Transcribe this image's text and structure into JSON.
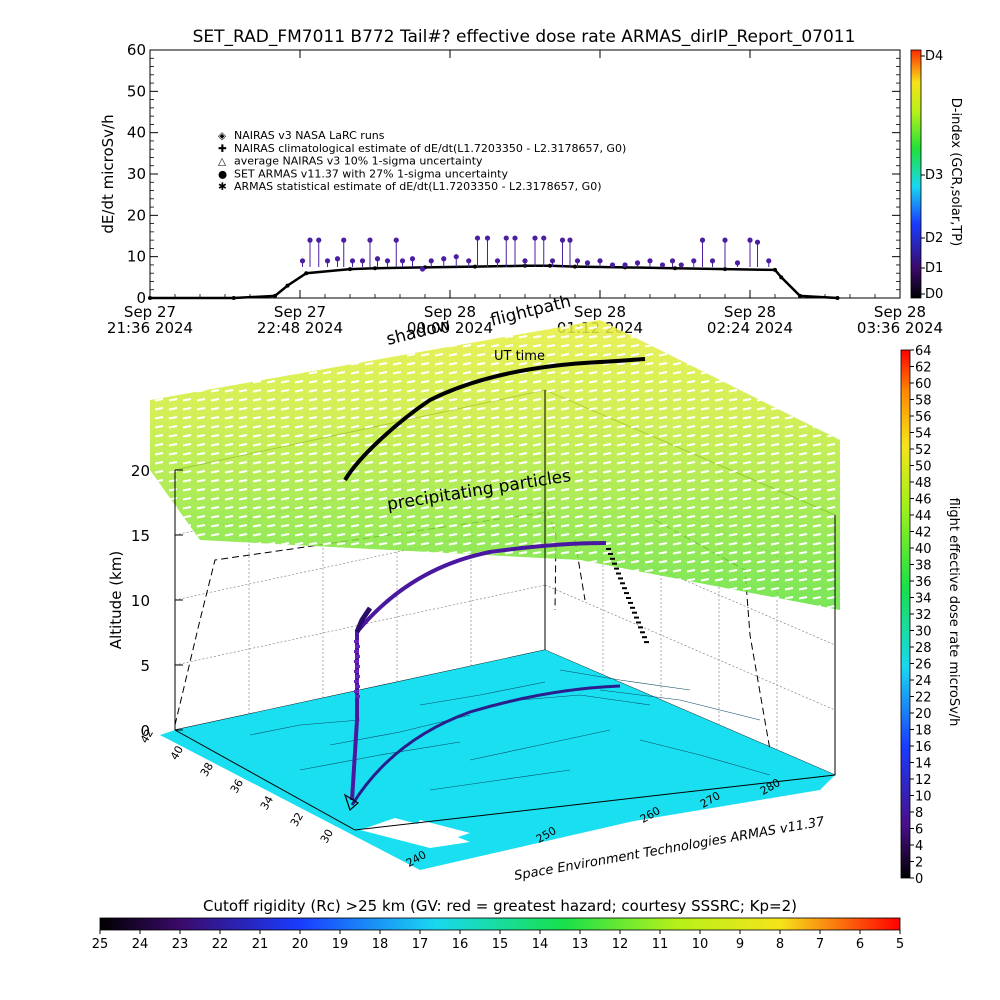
{
  "title": "SET_RAD_FM7011  B772 Tail#? effective dose rate ARMAS_dirIP_Report_07011",
  "colors": {
    "nairas_line": "#000000",
    "armas_points": "#4b1fa0",
    "flightpath": "#2a1e8c",
    "map_fill": "#19dff0",
    "shadow_path": "#000000"
  },
  "chart_data": [
    {
      "type": "line",
      "title": "",
      "xlabel": "",
      "ylabel": "dE/dt microSv/h",
      "ylim": [
        0,
        60
      ],
      "yticks": [
        "0",
        "10",
        "20",
        "30",
        "40",
        "50",
        "60"
      ],
      "xticks": [
        {
          "l1": "Sep 27",
          "l2": "21:36 2024"
        },
        {
          "l1": "Sep 27",
          "l2": "22:48 2024"
        },
        {
          "l1": "Sep 28",
          "l2": "00:00 2024"
        },
        {
          "l1": "Sep 28",
          "l2": "01:12 2024"
        },
        {
          "l1": "Sep 28",
          "l2": "02:24 2024"
        },
        {
          "l1": "Sep 28",
          "l2": "03:36 2024"
        }
      ],
      "x_hours": [
        0,
        0.67,
        1.0,
        1.1,
        1.25,
        1.6,
        1.8,
        2.2,
        2.6,
        3.0,
        3.2,
        3.4,
        3.8,
        4.2,
        4.6,
        5.0,
        5.05,
        5.2,
        5.5
      ],
      "series": [
        {
          "name": "NAIRAS v3 NASA LaRC runs",
          "y": [
            0,
            0,
            0.5,
            3,
            6,
            7.0,
            7.2,
            7.4,
            7.6,
            7.8,
            7.8,
            7.6,
            7.4,
            7.2,
            7.0,
            6.8,
            5,
            0.5,
            0
          ]
        }
      ],
      "armas_points": [
        [
          1.22,
          9
        ],
        [
          1.28,
          14
        ],
        [
          1.35,
          14
        ],
        [
          1.42,
          9
        ],
        [
          1.5,
          9.5
        ],
        [
          1.55,
          14
        ],
        [
          1.62,
          9
        ],
        [
          1.7,
          9
        ],
        [
          1.76,
          14
        ],
        [
          1.82,
          9.5
        ],
        [
          1.9,
          9
        ],
        [
          1.97,
          14
        ],
        [
          2.02,
          9
        ],
        [
          2.1,
          9.5
        ],
        [
          2.18,
          7
        ],
        [
          2.25,
          9
        ],
        [
          2.35,
          9.5
        ],
        [
          2.45,
          10
        ],
        [
          2.55,
          9
        ],
        [
          2.62,
          14.5
        ],
        [
          2.7,
          14.5
        ],
        [
          2.78,
          9
        ],
        [
          2.85,
          14.5
        ],
        [
          2.92,
          14.5
        ],
        [
          3.0,
          9
        ],
        [
          3.08,
          14.5
        ],
        [
          3.15,
          14.5
        ],
        [
          3.22,
          9
        ],
        [
          3.3,
          14
        ],
        [
          3.36,
          14
        ],
        [
          3.42,
          9
        ],
        [
          3.5,
          8.5
        ],
        [
          3.6,
          9
        ],
        [
          3.7,
          8
        ],
        [
          3.8,
          8
        ],
        [
          3.9,
          8.5
        ],
        [
          4.0,
          9
        ],
        [
          4.1,
          8
        ],
        [
          4.18,
          9
        ],
        [
          4.25,
          8
        ],
        [
          4.35,
          9
        ],
        [
          4.42,
          14
        ],
        [
          4.5,
          9
        ],
        [
          4.6,
          14
        ],
        [
          4.7,
          8.5
        ],
        [
          4.8,
          14
        ],
        [
          4.86,
          13.5
        ],
        [
          4.95,
          9
        ]
      ],
      "legend": [
        {
          "symbol": "◈",
          "label": "NAIRAS v3 NASA LaRC runs"
        },
        {
          "symbol": "✚",
          "label": "NAIRAS climatological estimate of dE/dt(L1.7203350 - L2.3178657, G0)"
        },
        {
          "symbol": "△",
          "label": "average NAIRAS v3 10% 1-sigma uncertainty"
        },
        {
          "symbol": "●",
          "label": "SET ARMAS v11.37 with 27% 1-sigma uncertainty"
        },
        {
          "symbol": "✱",
          "label": "ARMAS statistical estimate of dE/dt(L1.7203350 - L2.3178657, G0)"
        }
      ],
      "dindex": {
        "label": "D-index (GCR,solar,TP)",
        "ticks": [
          "D0",
          "D1",
          "D2",
          "D3",
          "D4"
        ]
      }
    },
    {
      "type": "scatter",
      "title": "",
      "zlabel": "Altitude (km)",
      "zlim": [
        0,
        20
      ],
      "zticks": [
        "0",
        "5",
        "10",
        "15",
        "20"
      ],
      "lat_ticks": [
        "30",
        "32",
        "34",
        "36",
        "38",
        "40",
        "42"
      ],
      "lon_ticks": [
        "240",
        "250",
        "260",
        "270",
        "280"
      ],
      "annotations": {
        "shadow": "shadow",
        "flightpath": "flightpath",
        "ut": "UT time",
        "precip": "precipitating particles",
        "credit": "Space Environment Technologies ARMAS v11.37"
      },
      "dose_colorbar": {
        "label": "flight effective dose rate microSv/h",
        "ticks": [
          "0",
          "2",
          "4",
          "6",
          "8",
          "10",
          "12",
          "14",
          "16",
          "18",
          "20",
          "22",
          "24",
          "26",
          "28",
          "30",
          "32",
          "34",
          "36",
          "38",
          "40",
          "42",
          "44",
          "46",
          "48",
          "50",
          "52",
          "54",
          "56",
          "58",
          "60",
          "62",
          "64"
        ]
      }
    },
    {
      "type": "heatmap",
      "title": "Cutoff rigidity (Rc) >25 km (GV: red = greatest hazard; courtesy SSSRC; Kp=2)",
      "ticks": [
        "25",
        "24",
        "23",
        "22",
        "21",
        "20",
        "19",
        "18",
        "17",
        "16",
        "15",
        "14",
        "13",
        "12",
        "11",
        "10",
        "9",
        "8",
        "7",
        "6",
        "5"
      ]
    }
  ]
}
